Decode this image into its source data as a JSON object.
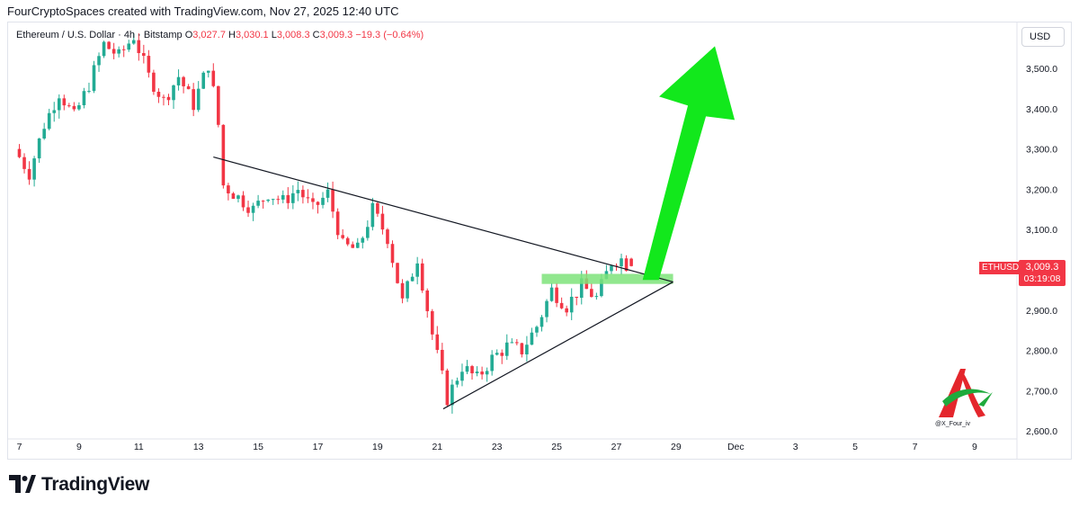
{
  "header": {
    "credit": "FourCryptoSpaces created with TradingView.com, Nov 27, 2025 12:40 UTC"
  },
  "legend": {
    "symbol": "Ethereum / U.S. Dollar · 4h · Bitstamp",
    "open_label": "O",
    "open_value": "3,027.7",
    "high_label": "H",
    "high_value": "3,030.1",
    "low_label": "L",
    "low_value": "3,008.3",
    "close_label": "C",
    "close_value": "3,009.3",
    "change": "−19.3 (−0.64%)"
  },
  "currency_button": "USD",
  "last_price": {
    "symbol": "ETHUSD",
    "price": "3,009.3",
    "countdown": "03:19:08"
  },
  "footer": {
    "brand": "TradingView"
  },
  "watermark": {
    "handle": "@X_Four_iv"
  },
  "colors": {
    "up": "#22ab94",
    "down": "#f23645",
    "arrow": "#12e81c",
    "zone": "#7ee37a"
  },
  "chart_data": {
    "type": "candlestick",
    "title": "Ethereum / U.S. Dollar · 4h · Bitstamp",
    "timeframe": "4h",
    "currency": "USD",
    "x_ticks": [
      {
        "label": "7",
        "day": 7
      },
      {
        "label": "9",
        "day": 9
      },
      {
        "label": "11",
        "day": 11
      },
      {
        "label": "13",
        "day": 13
      },
      {
        "label": "15",
        "day": 15
      },
      {
        "label": "17",
        "day": 17
      },
      {
        "label": "19",
        "day": 19
      },
      {
        "label": "21",
        "day": 21
      },
      {
        "label": "23",
        "day": 23
      },
      {
        "label": "25",
        "day": 25
      },
      {
        "label": "27",
        "day": 27
      },
      {
        "label": "29",
        "day": 29
      },
      {
        "label": "Dec",
        "day": 31
      },
      {
        "label": "3",
        "day": 33
      },
      {
        "label": "5",
        "day": 35
      },
      {
        "label": "7",
        "day": 37
      },
      {
        "label": "9",
        "day": 39
      }
    ],
    "y_ticks": [
      {
        "label": "3,500.0",
        "value": 3500
      },
      {
        "label": "3,400.0",
        "value": 3400
      },
      {
        "label": "3,300.0",
        "value": 3300
      },
      {
        "label": "3,200.0",
        "value": 3200
      },
      {
        "label": "3,100.0",
        "value": 3100
      },
      {
        "label": "2,900.0",
        "value": 2900
      },
      {
        "label": "2,800.0",
        "value": 2800
      },
      {
        "label": "2,700.0",
        "value": 2700
      },
      {
        "label": "2,600.0",
        "value": 2600
      }
    ],
    "ylim": [
      2580,
      3580
    ],
    "xlim": [
      6.8,
      41.0
    ],
    "anchors": [
      {
        "day": 7.0,
        "price": 3300
      },
      {
        "day": 7.5,
        "price": 3240
      },
      {
        "day": 8.0,
        "price": 3360
      },
      {
        "day": 8.5,
        "price": 3440
      },
      {
        "day": 9.0,
        "price": 3380
      },
      {
        "day": 9.5,
        "price": 3460
      },
      {
        "day": 10.0,
        "price": 3560
      },
      {
        "day": 10.5,
        "price": 3530
      },
      {
        "day": 11.0,
        "price": 3580
      },
      {
        "day": 11.5,
        "price": 3480
      },
      {
        "day": 12.0,
        "price": 3420
      },
      {
        "day": 12.5,
        "price": 3480
      },
      {
        "day": 13.0,
        "price": 3410
      },
      {
        "day": 13.5,
        "price": 3510
      },
      {
        "day": 13.8,
        "price": 3390
      },
      {
        "day": 14.0,
        "price": 3210
      },
      {
        "day": 14.5,
        "price": 3180
      },
      {
        "day": 15.0,
        "price": 3150
      },
      {
        "day": 15.5,
        "price": 3190
      },
      {
        "day": 16.0,
        "price": 3170
      },
      {
        "day": 16.5,
        "price": 3200
      },
      {
        "day": 17.0,
        "price": 3150
      },
      {
        "day": 17.5,
        "price": 3190
      },
      {
        "day": 18.0,
        "price": 3060
      },
      {
        "day": 18.5,
        "price": 3050
      },
      {
        "day": 19.0,
        "price": 3150
      },
      {
        "day": 19.5,
        "price": 3080
      },
      {
        "day": 20.0,
        "price": 2920
      },
      {
        "day": 20.5,
        "price": 3030
      },
      {
        "day": 21.0,
        "price": 2840
      },
      {
        "day": 21.5,
        "price": 2680
      },
      {
        "day": 22.0,
        "price": 2760
      },
      {
        "day": 22.5,
        "price": 2730
      },
      {
        "day": 23.0,
        "price": 2780
      },
      {
        "day": 23.5,
        "price": 2810
      },
      {
        "day": 24.0,
        "price": 2800
      },
      {
        "day": 24.5,
        "price": 2860
      },
      {
        "day": 25.0,
        "price": 2950
      },
      {
        "day": 25.5,
        "price": 2910
      },
      {
        "day": 26.0,
        "price": 2960
      },
      {
        "day": 26.5,
        "price": 2930
      },
      {
        "day": 27.0,
        "price": 3020
      },
      {
        "day": 27.3,
        "price": 3030
      },
      {
        "day": 27.55,
        "price": 3009
      }
    ],
    "last": {
      "open": 3027.7,
      "high": 3030.1,
      "low": 3008.3,
      "close": 3009.3
    },
    "drawings": {
      "descending_trendline": {
        "from": {
          "day": 13.5,
          "price": 3280
        },
        "to": {
          "day": 28.9,
          "price": 2970
        }
      },
      "ascending_trendline": {
        "from": {
          "day": 21.2,
          "price": 2655
        },
        "to": {
          "day": 28.9,
          "price": 2970
        }
      },
      "breakout_zone": {
        "day_from": 24.5,
        "day_to": 28.9,
        "price_low": 2965,
        "price_high": 2990
      },
      "arrow": {
        "from": {
          "day": 28.0,
          "price": 2975
        },
        "tip": {
          "day": 30.3,
          "price": 3555
        }
      }
    }
  }
}
